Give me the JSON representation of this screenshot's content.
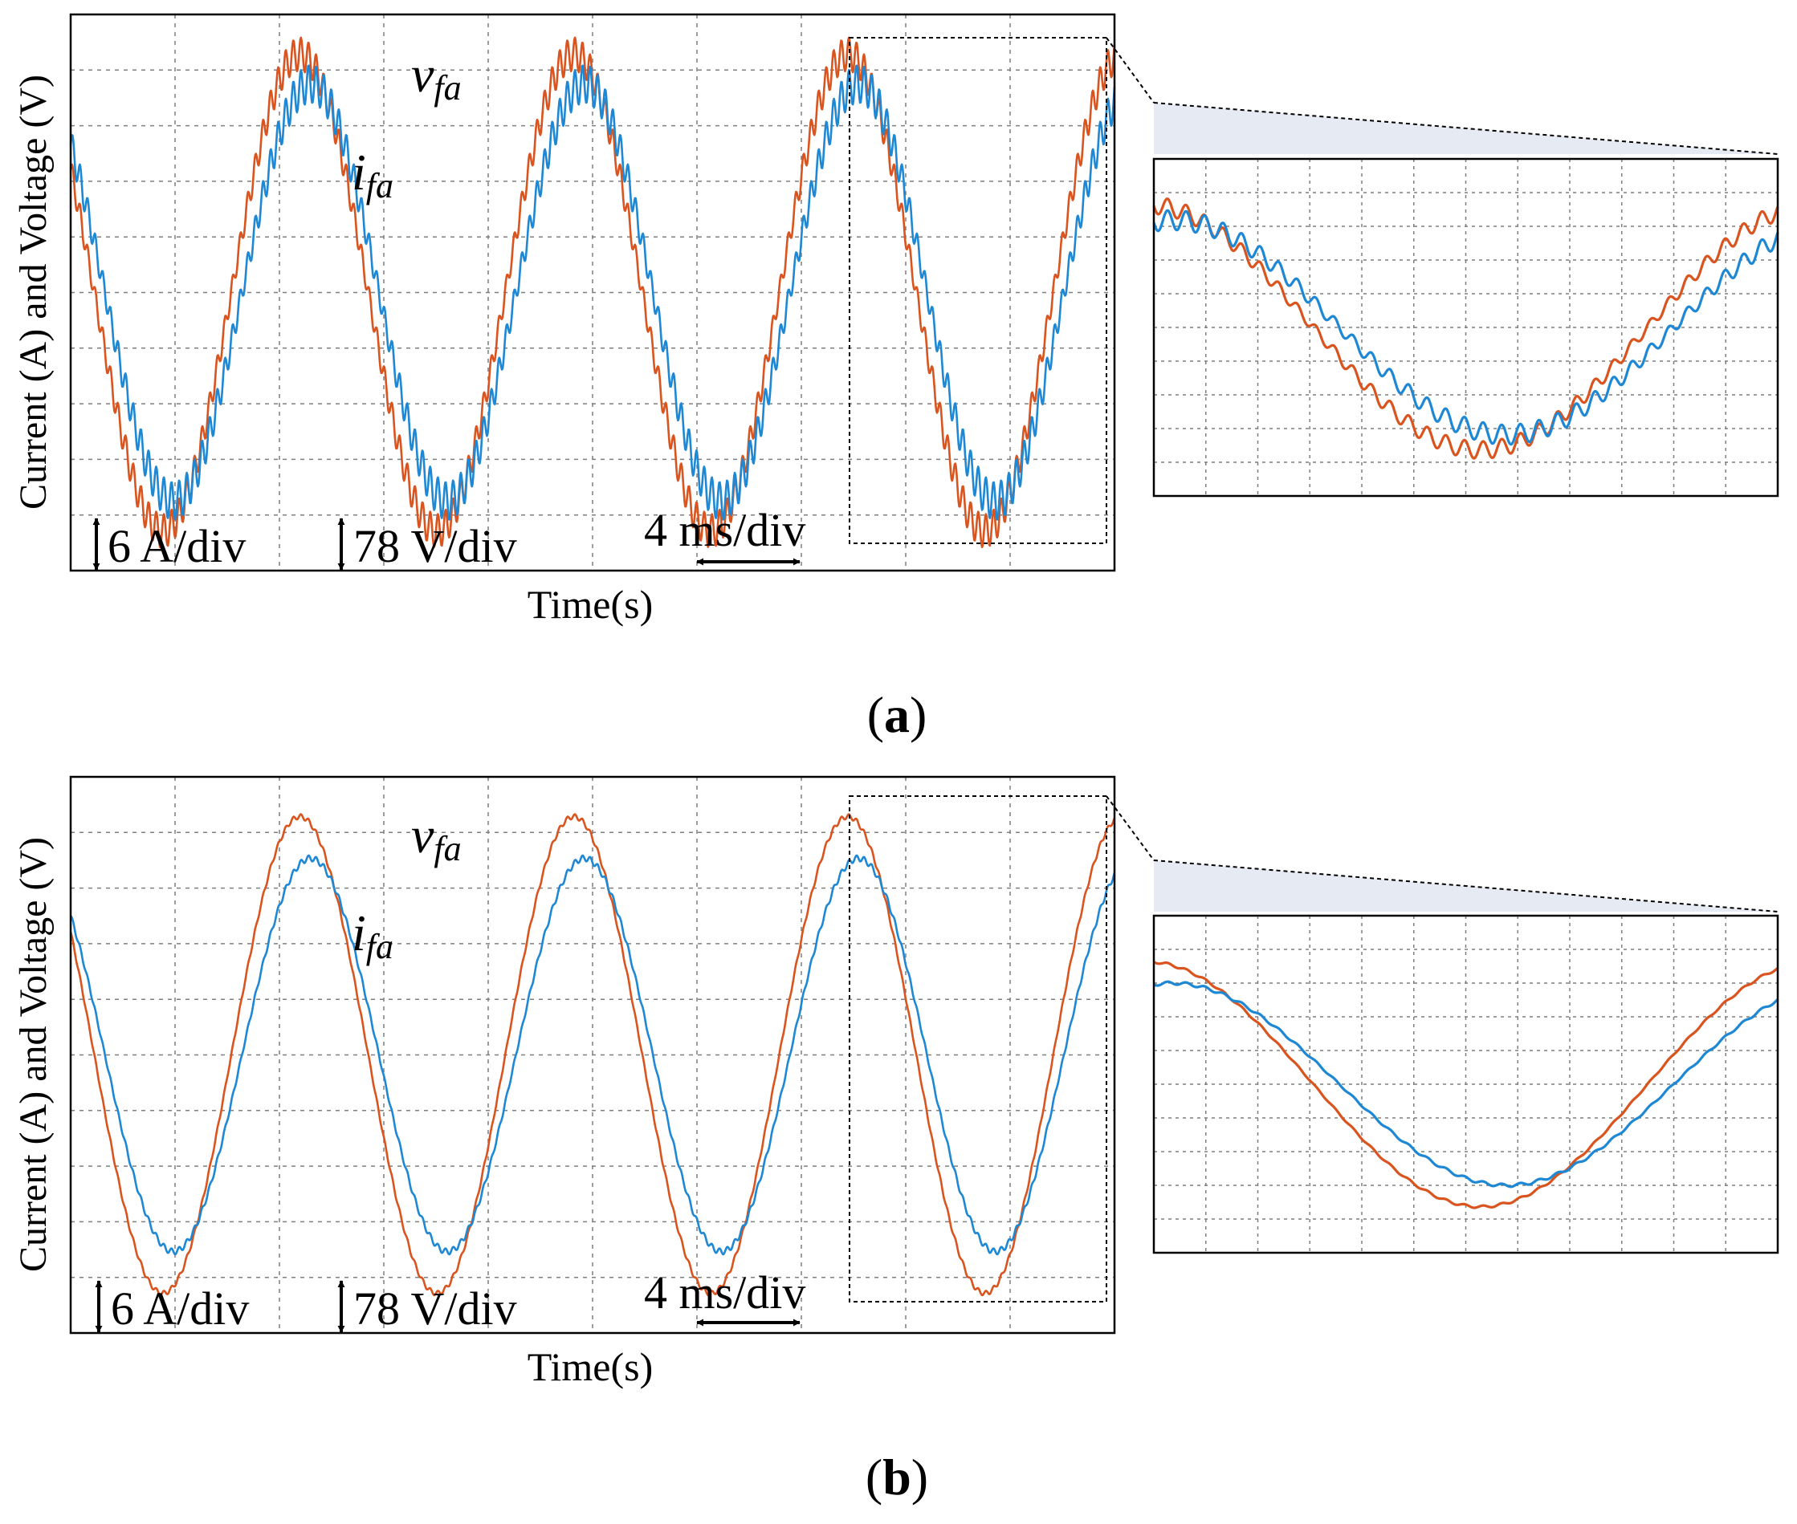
{
  "colors": {
    "voltage": "#D9541E",
    "current": "#1E88D4",
    "grid": "#7f7f7f",
    "zoom_fill": "#E6EBF3"
  },
  "chart_data": [
    {
      "type": "line",
      "panel_label": "a",
      "xlabel": "Time(s)",
      "ylabel": "Current (A) and Voltage (V)",
      "x_divisions": 10,
      "y_divisions": 9,
      "x_unit": "ms",
      "x_per_division": 4,
      "xlim": [
        0,
        40
      ],
      "ylim_divisions": [
        -4.5,
        4.5
      ],
      "fundamental_period_ms": 10.5,
      "series": [
        {
          "name": "v_fa",
          "label_base": "v",
          "label_sub": "fa",
          "scale": "78 V/div",
          "amplitude_div": 4.0,
          "phase_deg": 0,
          "ripple_div": 0.28,
          "ripple_cycles_per_period": 36
        },
        {
          "name": "i_fa",
          "label_base": "i",
          "label_sub": "fa",
          "scale": "6 A/div",
          "amplitude_div": 3.5,
          "phase_deg": -14,
          "ripple_div": 0.32,
          "ripple_cycles_per_period": 36
        }
      ],
      "zoom_window_ms": [
        29.9,
        39.7
      ],
      "annotations": {
        "current_scale": "6 A/div",
        "voltage_scale": "78 V/div",
        "time_scale": "4 ms/div"
      }
    },
    {
      "type": "line",
      "panel_label": "b",
      "xlabel": "Time(s)",
      "ylabel": "Current (A) and Voltage (V)",
      "x_divisions": 10,
      "y_divisions": 9,
      "x_unit": "ms",
      "x_per_division": 4,
      "xlim": [
        0,
        40
      ],
      "ylim_divisions": [
        -4.5,
        4.5
      ],
      "fundamental_period_ms": 10.5,
      "series": [
        {
          "name": "v_fa",
          "label_base": "v",
          "label_sub": "fa",
          "scale": "78 V/div",
          "amplitude_div": 4.0,
          "phase_deg": 0,
          "ripple_div": 0.04,
          "ripple_cycles_per_period": 36
        },
        {
          "name": "i_fa",
          "label_base": "i",
          "label_sub": "fa",
          "scale": "6 A/div",
          "amplitude_div": 3.3,
          "phase_deg": -14,
          "ripple_div": 0.05,
          "ripple_cycles_per_period": 36
        }
      ],
      "zoom_window_ms": [
        29.9,
        39.7
      ],
      "annotations": {
        "current_scale": "6 A/div",
        "voltage_scale": "78 V/div",
        "time_scale": "4 ms/div"
      }
    }
  ]
}
